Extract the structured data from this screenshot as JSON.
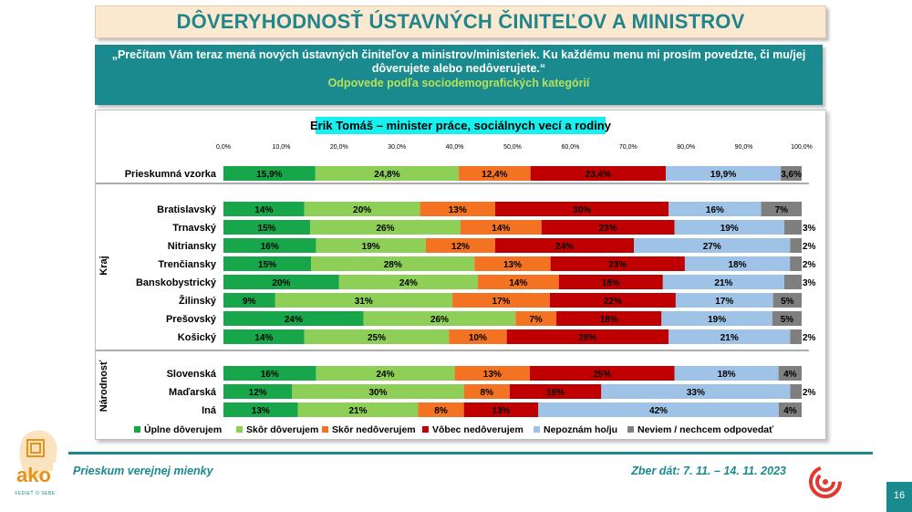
{
  "title": "DÔVERYHODNOSŤ ÚSTAVNÝCH ČINITEĽOV A MINISTROV",
  "question": "„Prečítam Vám teraz mená nových ústavných činiteľov a ministrov/ministeriek. Ku každému menu mi prosím povedzte, či mu/jej dôverujete alebo nedôverujete.“",
  "subtitle": "Odpovede podľa sociodemografických kategórií",
  "footer": {
    "left": "Prieskum verejnej mienky",
    "right": "Zber dát: 7. 11. – 14. 11. 2023",
    "page": "16",
    "logo_text": "ako",
    "logo_tagline": "VEDIEŤ O SEBE"
  },
  "colors": {
    "teal": "#1a8a8f",
    "series": [
      "#17a74a",
      "#8dcf57",
      "#f47322",
      "#c00000",
      "#9ec3e6",
      "#7f7f7f"
    ]
  },
  "chart_data": {
    "type": "bar",
    "orientation": "horizontal",
    "stacked": true,
    "title": "Erik Tomáš – minister práce, sociálnych vecí a rodiny",
    "x_ticks": [
      "0,0%",
      "10,0%",
      "20,0%",
      "30,0%",
      "40,0%",
      "50,0%",
      "60,0%",
      "70,0%",
      "80,0%",
      "90,0%",
      "100,0%"
    ],
    "xlim": [
      0,
      100
    ],
    "legend_position": "bottom",
    "groups": [
      {
        "name": "",
        "rows": [
          0
        ]
      },
      {
        "name": "Kraj",
        "rows": [
          1,
          2,
          3,
          4,
          5,
          6,
          7,
          8
        ]
      },
      {
        "name": "Národnosť",
        "rows": [
          9,
          10,
          11
        ]
      }
    ],
    "categories": [
      "Prieskumná vzorka",
      "Bratislavský",
      "Trnavský",
      "Nitriansky",
      "Trenčiansky",
      "Banskobystrický",
      "Žilinský",
      "Prešovský",
      "Košický",
      "Slovenská",
      "Maďarská",
      "Iná"
    ],
    "series": [
      {
        "name": "Úplne dôverujem",
        "values": [
          15.9,
          14,
          15,
          16,
          15,
          20,
          9,
          24,
          14,
          16,
          12,
          13
        ],
        "labels": [
          "15,9%",
          "14%",
          "15%",
          "16%",
          "15%",
          "20%",
          "9%",
          "24%",
          "14%",
          "16%",
          "12%",
          "13%"
        ]
      },
      {
        "name": "Skôr dôverujem",
        "values": [
          24.8,
          20,
          26,
          19,
          28,
          24,
          31,
          26,
          25,
          24,
          30,
          21
        ],
        "labels": [
          "24,8%",
          "20%",
          "26%",
          "19%",
          "28%",
          "24%",
          "31%",
          "26%",
          "25%",
          "24%",
          "30%",
          "21%"
        ]
      },
      {
        "name": "Skôr nedôverujem",
        "values": [
          12.4,
          13,
          14,
          12,
          13,
          14,
          17,
          7,
          10,
          13,
          8,
          8
        ],
        "labels": [
          "12,4%",
          "13%",
          "14%",
          "12%",
          "13%",
          "14%",
          "17%",
          "7%",
          "10%",
          "13%",
          "8%",
          "8%"
        ]
      },
      {
        "name": "Vôbec nedôverujem",
        "values": [
          23.4,
          30,
          23,
          24,
          23,
          18,
          22,
          18,
          28,
          25,
          16,
          13
        ],
        "labels": [
          "23,4%",
          "30%",
          "23%",
          "24%",
          "23%",
          "18%",
          "22%",
          "18%",
          "28%",
          "25%",
          "16%",
          "13%"
        ]
      },
      {
        "name": "Nepoznám ho/ju",
        "values": [
          19.9,
          16,
          19,
          27,
          18,
          21,
          17,
          19,
          21,
          18,
          33,
          42
        ],
        "labels": [
          "19,9%",
          "16%",
          "19%",
          "27%",
          "18%",
          "21%",
          "17%",
          "19%",
          "21%",
          "18%",
          "33%",
          "42%"
        ]
      },
      {
        "name": "Neviem / nechcem odpovedať",
        "values": [
          3.6,
          7,
          3,
          2,
          2,
          3,
          5,
          5,
          2,
          4,
          2,
          4
        ],
        "labels": [
          "3,6%",
          "7%",
          "3%",
          "2%",
          "2%",
          "3%",
          "5%",
          "5%",
          "2%",
          "4%",
          "2%",
          "4%"
        ]
      }
    ]
  }
}
